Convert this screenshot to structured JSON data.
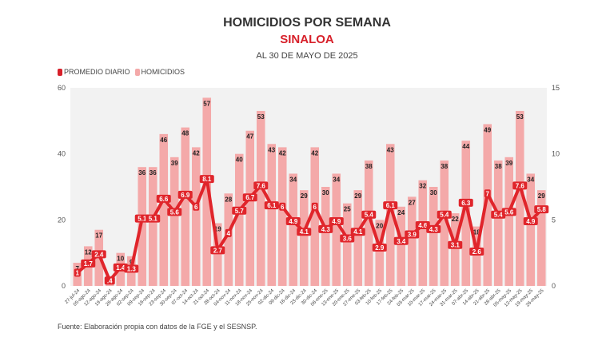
{
  "header": {
    "title": "HOMICIDIOS POR SEMANA",
    "subtitle": "SINALOA",
    "date": "AL 30 DE MAYO DE 2025"
  },
  "legend": [
    {
      "label": "PROMEDIO DIARIO",
      "color": "#d7202a"
    },
    {
      "label": "HOMICIDIOS",
      "color": "#f4a9a9"
    }
  ],
  "source": "Fuente: Elaboración propia con datos de la FGE y el SESNSP.",
  "colors": {
    "bar": "#f4a9a9",
    "line": "#e0252b",
    "plot_bg": "#f2f2f2"
  },
  "chart_data": {
    "type": "bar",
    "title": "HOMICIDIOS POR SEMANA",
    "subtitle": "SINALOA — AL 30 DE MAYO DE 2025",
    "xlabel": "",
    "ylabel": "",
    "ylim": [
      0,
      60
    ],
    "y2lim": [
      0,
      15
    ],
    "yticks": [
      0,
      20,
      40,
      60
    ],
    "y2ticks": [
      0,
      5,
      10,
      15
    ],
    "legend_position": "top-left",
    "grid": false,
    "categories": [
      "27-jul-24",
      "05-ago-24",
      "12-ago-24",
      "19-ago-24",
      "26-ago-24",
      "02-sep-24",
      "09-sep-24",
      "16-sep-24",
      "23-sep-24",
      "30-sep-24",
      "07-oct-24",
      "14-oct-24",
      "21-oct-24",
      "28-oct-24",
      "04-nov-24",
      "11-nov-24",
      "18-nov-24",
      "25-nov-24",
      "02-dic-24",
      "09-dic-24",
      "16-dic-24",
      "23-dic-24",
      "30-dic-24",
      "06-ene-25",
      "13-ene-25",
      "20-ene-25",
      "27-ene-25",
      "03-feb-25",
      "10-feb-25",
      "17-feb-25",
      "24-feb-25",
      "03-mar-25",
      "10-mar-25",
      "17-mar-25",
      "24-mar-25",
      "31-mar-25",
      "07-abr-25",
      "14-abr-25",
      "21-abr-25",
      "28-abr-25",
      "05-may-25",
      "12-may-25",
      "19-may-25",
      "26-may-25"
    ],
    "series": [
      {
        "name": "HOMICIDIOS",
        "type": "bar",
        "axis": "left",
        "values": [
          7,
          12,
          17,
          3,
          10,
          9,
          36,
          36,
          46,
          39,
          48,
          42,
          57,
          19,
          28,
          40,
          47,
          53,
          43,
          42,
          34,
          29,
          42,
          30,
          34,
          25,
          29,
          38,
          20,
          43,
          24,
          27,
          32,
          30,
          38,
          22,
          44,
          18,
          49,
          38,
          39,
          53,
          34,
          29
        ],
        "labels": [
          "7",
          "12",
          "17",
          "",
          "10",
          "9",
          "36",
          "36",
          "46",
          "39",
          "48",
          "42",
          "57",
          "19",
          "28",
          "40",
          "47",
          "53",
          "43",
          "42",
          "34",
          "29",
          "42",
          "30",
          "34",
          "25",
          "29",
          "38",
          "20",
          "43",
          "24",
          "27",
          "32",
          "30",
          "38",
          "22",
          "44",
          "18",
          "49",
          "38",
          "39",
          "53",
          "34",
          "29"
        ]
      },
      {
        "name": "PROMEDIO DIARIO",
        "type": "line",
        "axis": "right",
        "values": [
          1,
          1.7,
          2.4,
          0.4,
          1.4,
          1.3,
          5.1,
          5.1,
          6.6,
          5.6,
          6.9,
          6,
          8.1,
          2.7,
          4,
          5.7,
          6.7,
          7.6,
          6.1,
          6,
          4.9,
          4.1,
          6,
          4.3,
          4.9,
          3.6,
          4.1,
          5.4,
          2.9,
          6.1,
          3.4,
          3.9,
          4.6,
          4.3,
          5.4,
          3.1,
          6.3,
          2.6,
          7,
          5.4,
          5.6,
          7.6,
          4.9,
          5.8
        ],
        "labels": [
          "1",
          "1.7",
          "2.4",
          ".4",
          "1.4",
          "1.3",
          "5.1",
          "5.1",
          "6.6",
          "5.6",
          "6.9",
          "6",
          "8.1",
          "2.7",
          "4",
          "5.7",
          "6.7",
          "7.6",
          "6.1",
          "6",
          "4.9",
          "4.1",
          "6",
          "4.3",
          "4.9",
          "3.6",
          "4.1",
          "5.4",
          "2.9",
          "6.1",
          "3.4",
          "3.9",
          "4.6",
          "4.3",
          "5.4",
          "3.1",
          "6.3",
          "2.6",
          "7",
          "5.4",
          "5.6",
          "7.6",
          "4.9",
          "5.8"
        ]
      }
    ]
  }
}
